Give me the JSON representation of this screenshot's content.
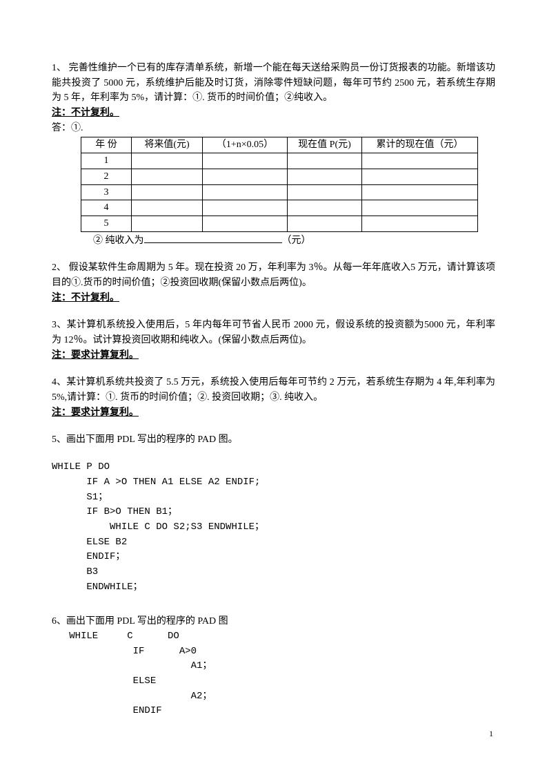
{
  "q1": {
    "text": "1、 完善性维护一个已有的库存清单系统，新增一个能在每天送给采购员一份订货报表的功能。新增该功能共投资了 5000 元，系统维护后能及时订货，消除零件短缺问题，每年可节约 2500 元，若系统生存期为 5 年，年利率为 5%，请计算：①. 货币的时间价值；②纯收入。",
    "note_prefix": "注：",
    "note_bold": "不计复利。",
    "answer_label": "答：①.",
    "table": {
      "headers": [
        "年  份",
        "将来值(元)",
        "（1+n×0.05）",
        "现在值 P(元)",
        "累计的现在值（元）"
      ],
      "rows": [
        "1",
        "2",
        "3",
        "4",
        "5"
      ]
    },
    "net_prefix": "② 纯收入为",
    "net_suffix": "（元）"
  },
  "q2": {
    "text": "2、  假设某软件生命周期为 5 年。现在投资 20 万，年利率为 3％。从每一年年底收入5 万元，请计算该项目的①.货币的时间价值；②投资回收期(保留小数点后两位)。",
    "note_prefix": "注：",
    "note_bold": "不计复利。"
  },
  "q3": {
    "text": "3、某计算机系统投入使用后，5 年内每年可节省人民币 2000 元，假设系统的投资额为5000 元，年利率为 12％。试计算投资回收期和纯收入。(保留小数点后两位)。",
    "note_prefix": "注：",
    "note_bold": "要求计算复利。"
  },
  "q4": {
    "text": "4、某计算机系统共投资了 5.5 万元，系统投入使用后每年可节约 2 万元，若系统生存期为 4 年,年利率为 5%,请计算：①. 货币的时间价值；②. 投资回收期；③. 纯收入。",
    "note_prefix": "注：",
    "note_bold": "要求计算复利。"
  },
  "q5": {
    "title": "5、画出下面用 PDL 写出的程序的 PAD 图。",
    "code": "WHILE P DO\n      IF A >O THEN A1 ELSE A2 ENDIF;\n      S1；\n      IF B>O THEN B1；\n          WHILE C DO S2;S3 ENDWHILE；\n      ELSE B2\n      ENDIF；\n      B3\n      ENDWHILE；"
  },
  "q6": {
    "title": "6、画出下面用 PDL 写出的程序的 PAD 图",
    "code": "   WHILE     C      DO\n              IF      A>0\n                        A1；\n              ELSE\n                        A2；\n              ENDIF"
  },
  "page_number": "1"
}
